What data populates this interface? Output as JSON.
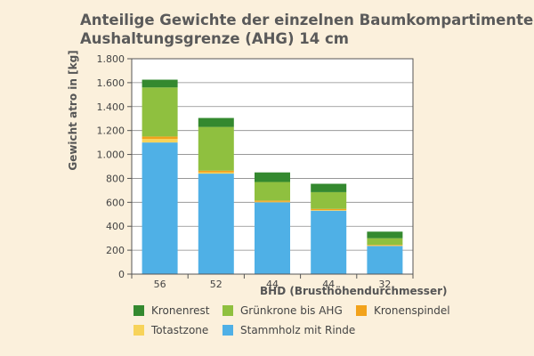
{
  "title_lines": [
    "Anteilige Gewichte der einzelnen Baumkompartimente",
    "Aushaltungsgrenze (AHG) 14 cm"
  ],
  "chart_data": {
    "type": "bar",
    "stacked": true,
    "title": "Anteilige Gewichte der einzelnen Baumkompartimente Aushaltungsgrenze (AHG) 14 cm",
    "xlabel": "BHD (Brusthöhendurchmesser)",
    "ylabel": "Gewicht atro in [kg]",
    "categories": [
      "56",
      "52",
      "44",
      "44",
      "32"
    ],
    "ylim": [
      0,
      1800
    ],
    "yticks": [
      0,
      200,
      400,
      600,
      800,
      1000,
      1200,
      1400,
      1600,
      1800
    ],
    "ytick_labels": [
      "0",
      "200",
      "400",
      "600",
      "800",
      "1.000",
      "1.200",
      "1.400",
      "1.600",
      "1.800"
    ],
    "grid": true,
    "series": [
      {
        "name": "Stammholz mit Rinde",
        "color": "#4fb0e6",
        "values": [
          1100,
          840,
          600,
          530,
          235
        ]
      },
      {
        "name": "Totastzone",
        "color": "#f7d35a",
        "values": [
          30,
          10,
          5,
          5,
          5
        ]
      },
      {
        "name": "Kronenspindel",
        "color": "#f2a21b",
        "values": [
          20,
          15,
          10,
          10,
          5
        ]
      },
      {
        "name": "Grünkrone bis AHG",
        "color": "#8fc03f",
        "values": [
          410,
          365,
          155,
          140,
          55
        ]
      },
      {
        "name": "Kronenrest",
        "color": "#34892f",
        "values": [
          65,
          75,
          80,
          70,
          55
        ]
      }
    ],
    "legend_position": "bottom"
  },
  "legend_order": [
    [
      "Kronenrest",
      "Grünkrone bis AHG",
      "Kronenspindel"
    ],
    [
      "Totastzone",
      "Stammholz mit Rinde"
    ]
  ]
}
